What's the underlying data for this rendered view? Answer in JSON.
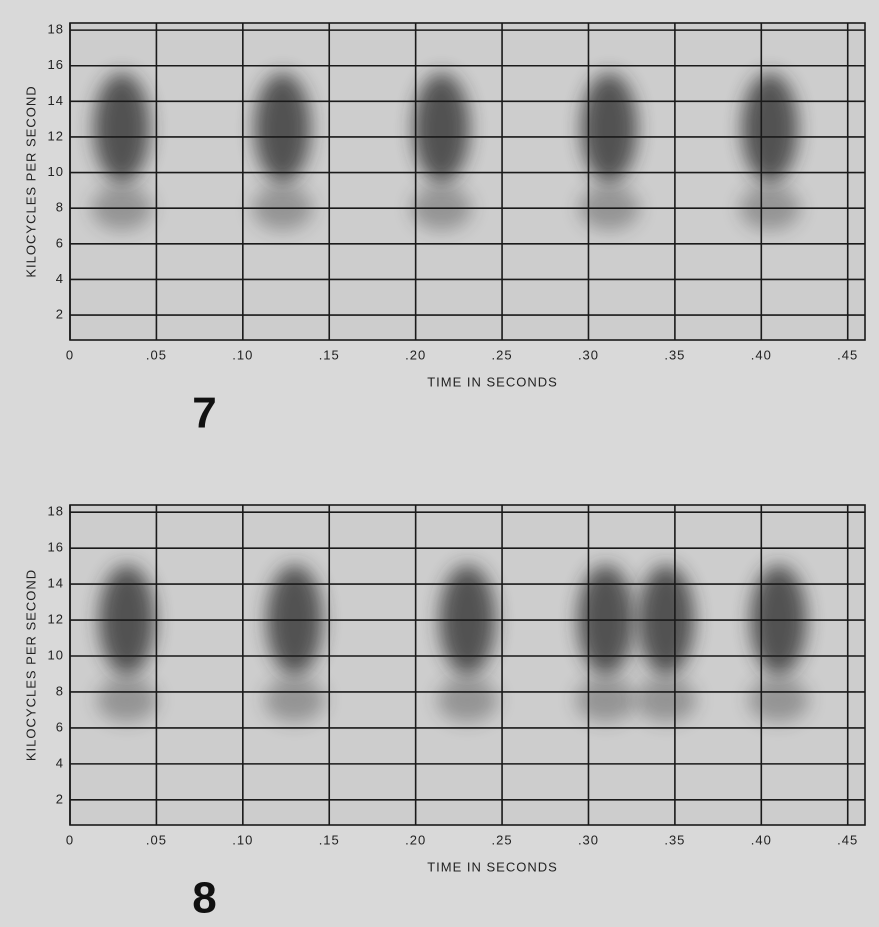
{
  "chart_data": [
    {
      "type": "spectrogram",
      "figure_label": "7",
      "xlabel": "TIME IN SECONDS",
      "ylabel": "KILOCYCLES PER SECOND",
      "x": [
        0.03,
        0.123,
        0.215,
        0.312,
        0.405
      ],
      "values": [
        12.5,
        12.5,
        12.5,
        12.5,
        12.5
      ],
      "color": "#2a2a2a",
      "xlim": [
        0,
        0.46
      ],
      "ylim": [
        0.6,
        18.4
      ],
      "xticks": [
        0,
        {
          "value": 0.05,
          "label": ".05"
        },
        {
          "value": 0.1,
          "label": ".10"
        },
        {
          "value": 0.15,
          "label": ".15"
        },
        {
          "value": 0.2,
          "label": ".20"
        },
        {
          "value": 0.25,
          "label": ".25"
        },
        {
          "value": 0.3,
          "label": ".30"
        },
        {
          "value": 0.35,
          "label": ".35"
        },
        {
          "value": 0.4,
          "label": ".40"
        },
        {
          "value": 0.45,
          "label": ".45"
        }
      ],
      "yticks": [
        2,
        4,
        6,
        8,
        10,
        12,
        14,
        16,
        18
      ],
      "grid": true
    },
    {
      "type": "spectrogram",
      "figure_label": "8",
      "xlabel": "TIME IN SECONDS",
      "ylabel": "KILOCYCLES PER SECOND",
      "x": [
        0.033,
        0.13,
        0.23,
        0.31,
        0.345,
        0.41
      ],
      "values": [
        12,
        12,
        12,
        12,
        12,
        12
      ],
      "color": "#2a2a2a",
      "xlim": [
        0,
        0.46
      ],
      "ylim": [
        0.6,
        18.4
      ],
      "xticks": [
        0,
        {
          "value": 0.05,
          "label": ".05"
        },
        {
          "value": 0.1,
          "label": ".10"
        },
        {
          "value": 0.15,
          "label": ".15"
        },
        {
          "value": 0.2,
          "label": ".20"
        },
        {
          "value": 0.25,
          "label": ".25"
        },
        {
          "value": 0.3,
          "label": ".30"
        },
        {
          "value": 0.35,
          "label": ".35"
        },
        {
          "value": 0.4,
          "label": ".40"
        },
        {
          "value": 0.45,
          "label": ".45"
        }
      ],
      "yticks": [
        2,
        4,
        6,
        8,
        10,
        12,
        14,
        16,
        18
      ],
      "grid": true
    }
  ]
}
